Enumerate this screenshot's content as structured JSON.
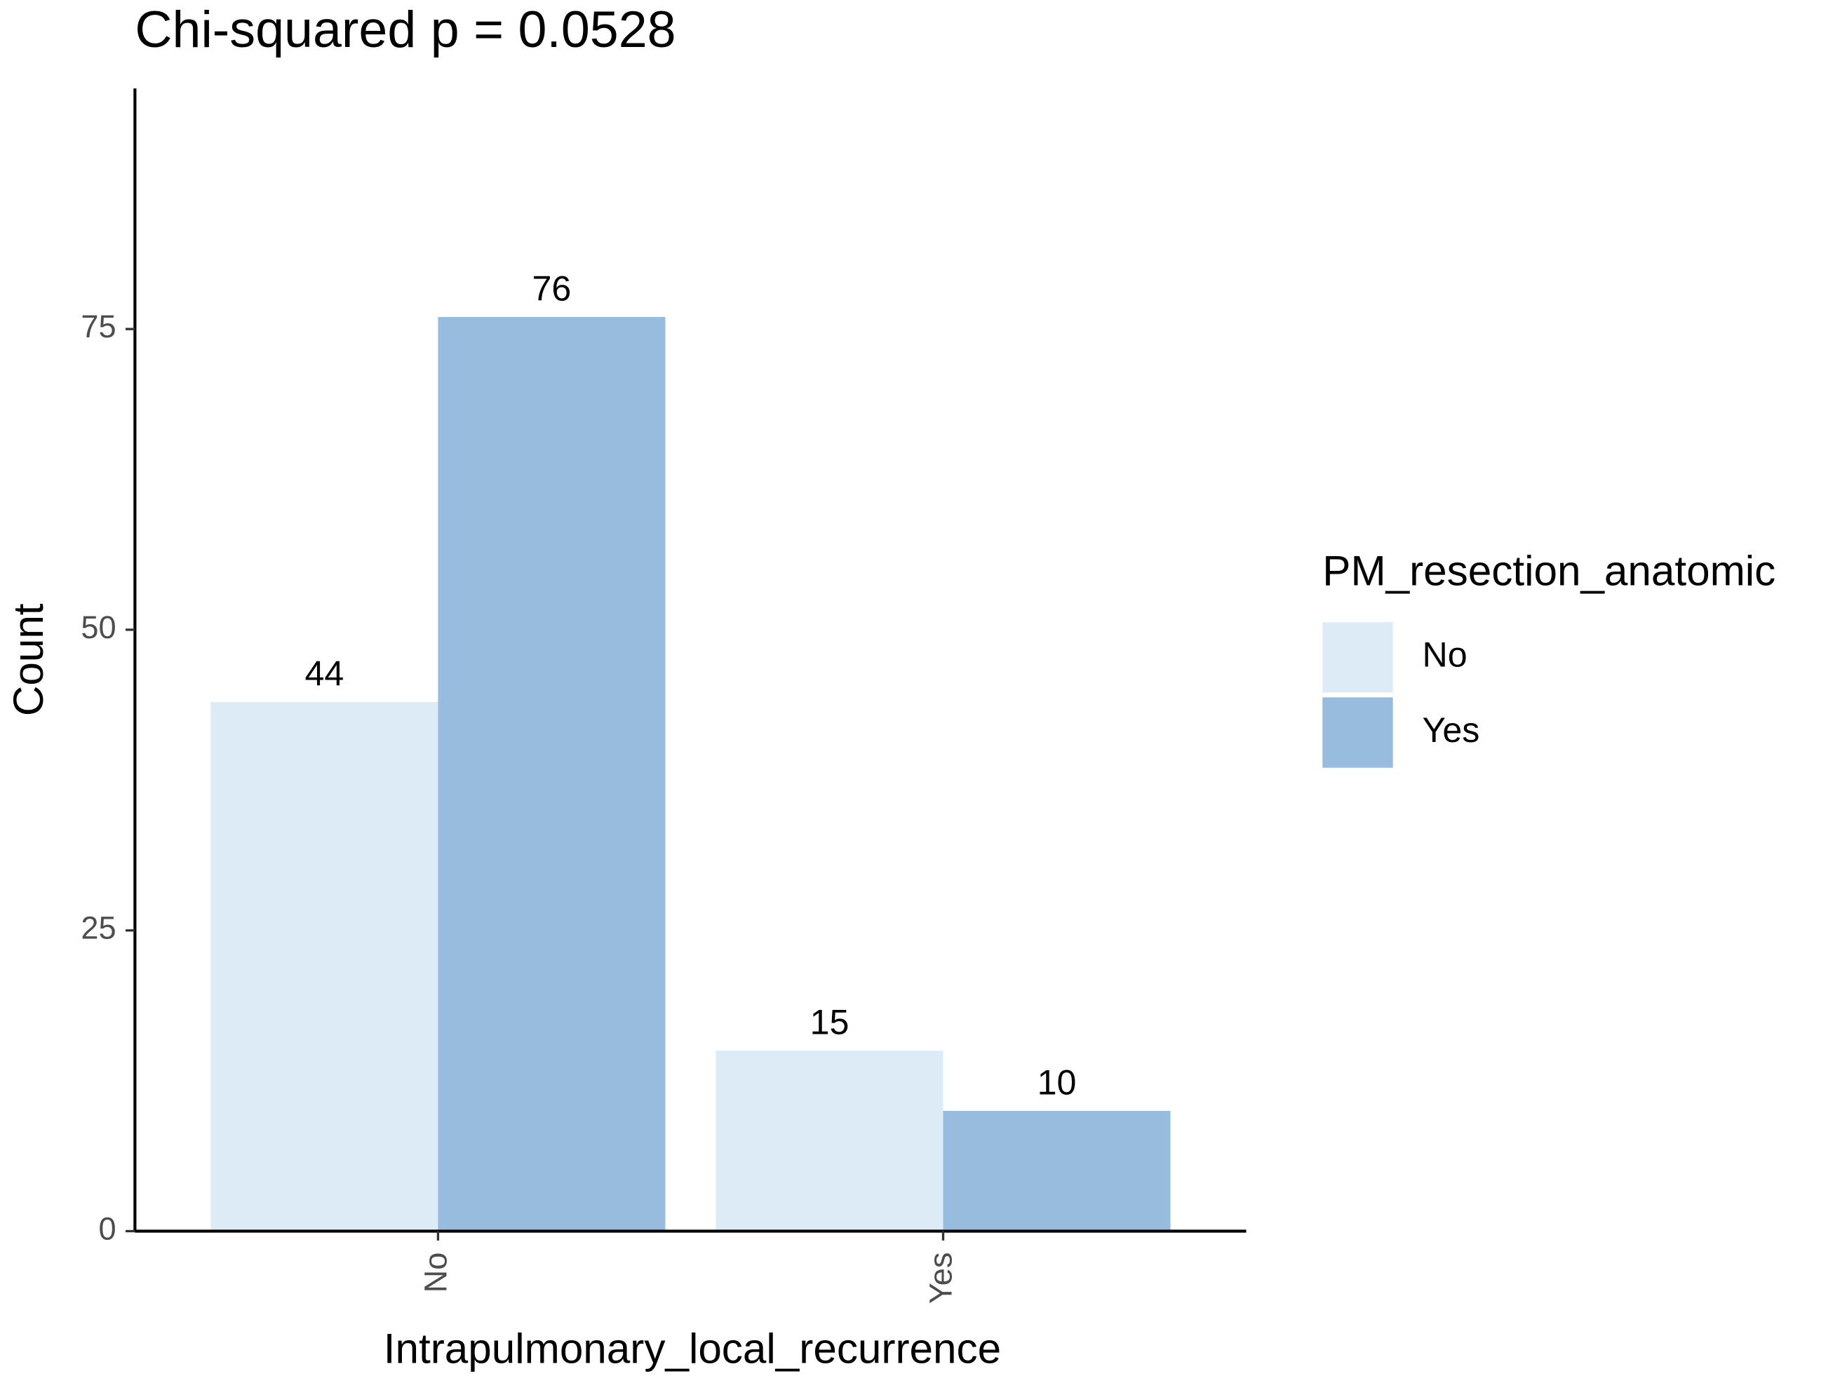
{
  "chart_data": {
    "type": "bar",
    "title": "Chi-squared p = 0.0528",
    "x_label": "Intrapulmonary_local_recurrence",
    "y_label": "Count",
    "categories": [
      "No",
      "Yes"
    ],
    "series": [
      {
        "name": "No",
        "color": "#dcebf5",
        "values": [
          44,
          15
        ]
      },
      {
        "name": "Yes",
        "color": "#98bcde",
        "values": [
          76,
          10
        ]
      }
    ],
    "ylim": [
      0,
      95
    ],
    "yticks": [
      0,
      25,
      50,
      75
    ],
    "legend_title": "PM_resection_anatomic",
    "legend": "right",
    "grid": false
  }
}
